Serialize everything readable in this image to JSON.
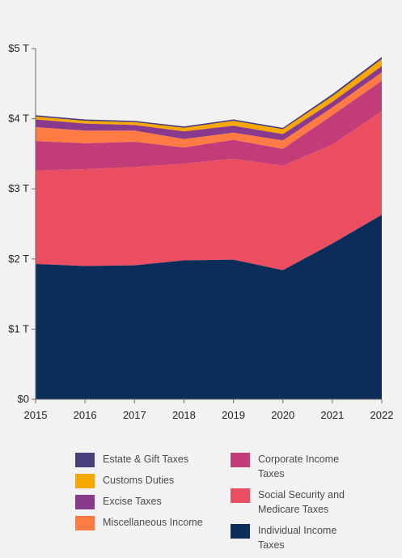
{
  "chart_data": {
    "type": "area",
    "stacked": true,
    "x": [
      "2015",
      "2016",
      "2017",
      "2018",
      "2019",
      "2020",
      "2021",
      "2022"
    ],
    "y_ticks": [
      "$0",
      "$1 T",
      "$2 T",
      "$3 T",
      "$4 T",
      "$5 T"
    ],
    "ylim": [
      0,
      5
    ],
    "grid": false,
    "legend_position": "bottom",
    "series": [
      {
        "name": "Individual Income Taxes",
        "color": "#0c2c59",
        "values": [
          1.93,
          1.9,
          1.91,
          1.98,
          1.99,
          1.84,
          2.22,
          2.63
        ]
      },
      {
        "name": "Social Security and Medicare Taxes",
        "color": "#eb4e61",
        "values": [
          1.33,
          1.38,
          1.4,
          1.38,
          1.44,
          1.49,
          1.41,
          1.48
        ]
      },
      {
        "name": "Corporate Income Taxes",
        "color": "#c23c78",
        "values": [
          0.42,
          0.37,
          0.36,
          0.23,
          0.27,
          0.24,
          0.42,
          0.43
        ]
      },
      {
        "name": "Miscellaneous Income",
        "color": "#ff7b43",
        "values": [
          0.2,
          0.18,
          0.16,
          0.12,
          0.1,
          0.12,
          0.11,
          0.12
        ]
      },
      {
        "name": "Excise Taxes",
        "color": "#8a3a8c",
        "values": [
          0.11,
          0.1,
          0.08,
          0.11,
          0.1,
          0.09,
          0.08,
          0.09
        ]
      },
      {
        "name": "Customs Duties",
        "color": "#f7a800",
        "values": [
          0.04,
          0.04,
          0.04,
          0.05,
          0.07,
          0.07,
          0.08,
          0.1
        ]
      },
      {
        "name": "Estate & Gift Taxes",
        "color": "#4a3e7d",
        "values": [
          0.02,
          0.02,
          0.02,
          0.02,
          0.02,
          0.02,
          0.03,
          0.03
        ]
      }
    ]
  },
  "legend": {
    "left": [
      {
        "label": "Estate & Gift Taxes",
        "color": "#4a3e7d"
      },
      {
        "label": "Customs Duties",
        "color": "#f7a800"
      },
      {
        "label": "Excise Taxes",
        "color": "#8a3a8c"
      },
      {
        "label": "Miscellaneous Income",
        "color": "#ff7b43"
      }
    ],
    "right": [
      {
        "label": "Corporate Income Taxes",
        "color": "#c23c78"
      },
      {
        "label": "Social Security and Medicare Taxes",
        "color": "#eb4e61"
      },
      {
        "label": "Individual Income Taxes",
        "color": "#0c2c59"
      }
    ]
  }
}
